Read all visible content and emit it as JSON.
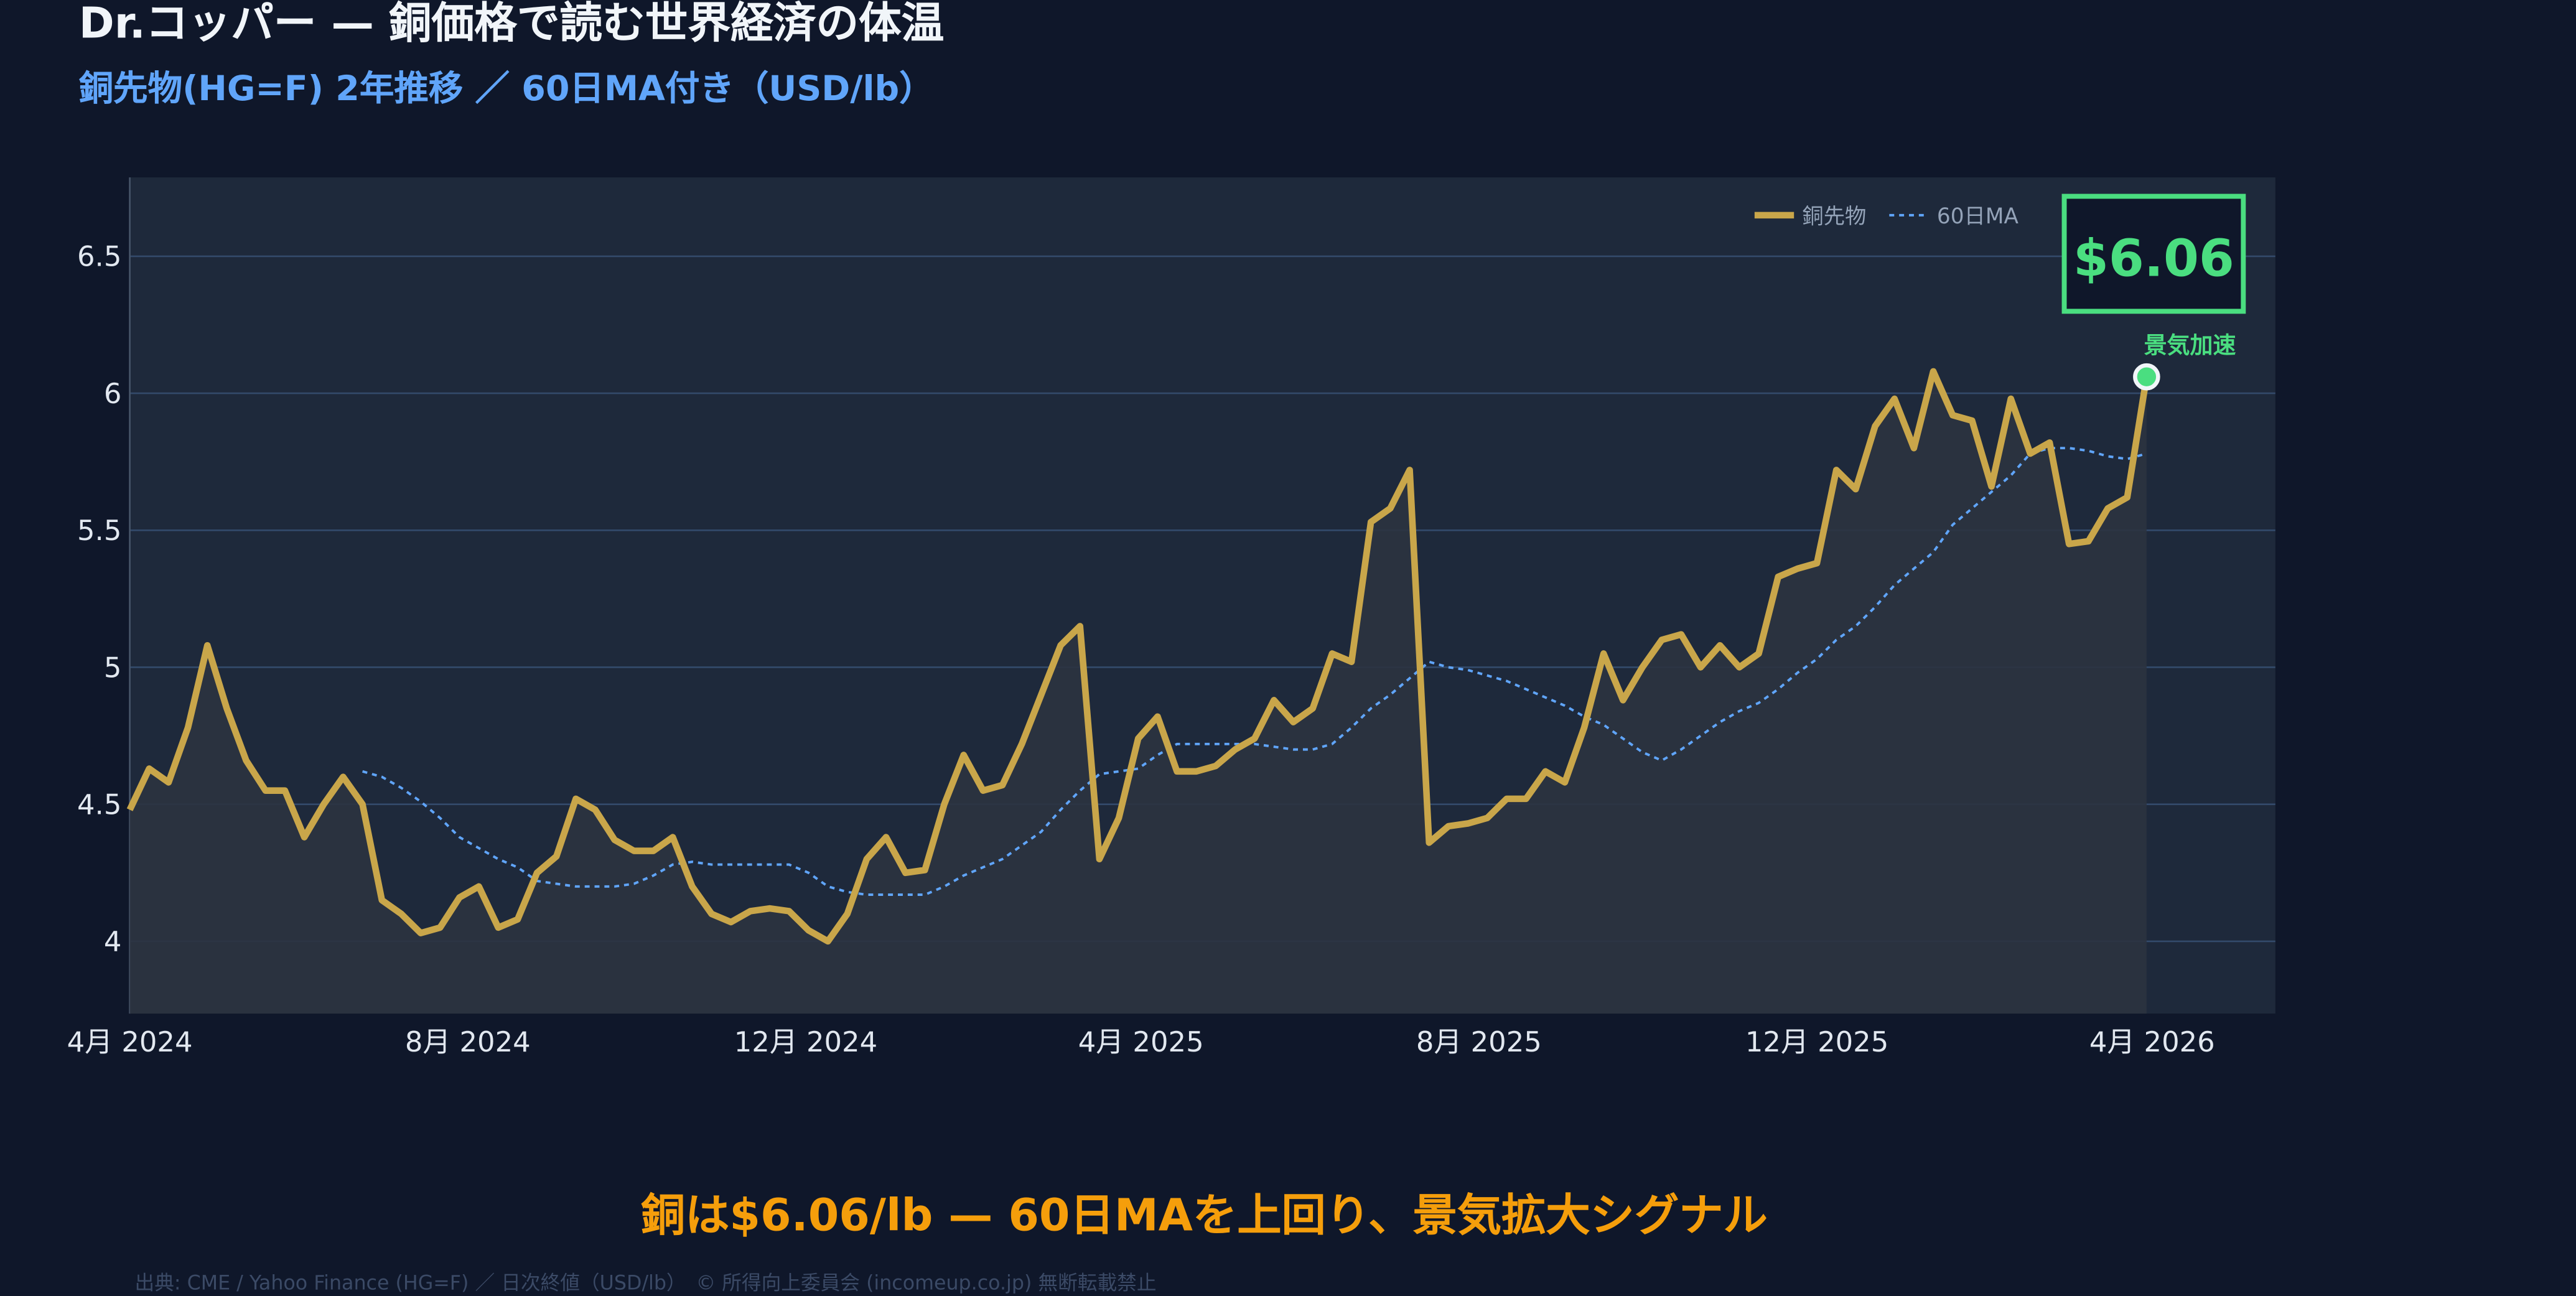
{
  "header": {
    "title": "Dr.コッパー — 銅価格で読む世界経済の体温",
    "subtitle": "銅先物(HG=F) 2年推移 ／ 60日MA付き（USD/lb）"
  },
  "conclusion": "銅は$6.06/lb — 60日MAを上回り、景気拡大シグナル",
  "footer": "出典: CME / Yahoo Finance (HG=F) ／ 日次終値（USD/lb）　© 所得向上委員会 (incomeup.co.jp) 無断転載禁止",
  "colors": {
    "copper": "#c9a64a",
    "ma": "#60a5fa",
    "accent": "#4ade80",
    "conclusion": "#f59e0b"
  },
  "chart_data": {
    "type": "line",
    "title": "",
    "xlabel": "",
    "ylabel": "",
    "ylim": [
      3.75,
      6.78
    ],
    "yticks": [
      "4",
      "4.5",
      "5",
      "5.5",
      "6",
      "6.5"
    ],
    "ytick_values": [
      4,
      4.5,
      5,
      5.5,
      6,
      6.5
    ],
    "xticks": [
      {
        "label": "4月 2024",
        "date": "2024-04-01"
      },
      {
        "label": "8月 2024",
        "date": "2024-08-01"
      },
      {
        "label": "12月 2024",
        "date": "2024-12-01"
      },
      {
        "label": "4月 2025",
        "date": "2025-04-01"
      },
      {
        "label": "8月 2025",
        "date": "2025-08-01"
      },
      {
        "label": "12月 2025",
        "date": "2025-12-01"
      },
      {
        "label": "4月 2026",
        "date": "2026-04-01"
      }
    ],
    "grid": true,
    "legend": {
      "position": "top-right",
      "entries": [
        "銅先物",
        "60日MA"
      ]
    },
    "x": [
      "2024-04-01",
      "2024-04-08",
      "2024-04-15",
      "2024-04-22",
      "2024-04-29",
      "2024-05-06",
      "2024-05-13",
      "2024-05-20",
      "2024-05-27",
      "2024-06-03",
      "2024-06-10",
      "2024-06-17",
      "2024-06-24",
      "2024-07-01",
      "2024-07-08",
      "2024-07-15",
      "2024-07-22",
      "2024-07-29",
      "2024-08-05",
      "2024-08-12",
      "2024-08-19",
      "2024-08-26",
      "2024-09-02",
      "2024-09-09",
      "2024-09-16",
      "2024-09-23",
      "2024-09-30",
      "2024-10-07",
      "2024-10-14",
      "2024-10-21",
      "2024-10-28",
      "2024-11-04",
      "2024-11-11",
      "2024-11-18",
      "2024-11-25",
      "2024-12-02",
      "2024-12-09",
      "2024-12-16",
      "2024-12-23",
      "2024-12-30",
      "2025-01-06",
      "2025-01-13",
      "2025-01-20",
      "2025-01-27",
      "2025-02-03",
      "2025-02-10",
      "2025-02-17",
      "2025-02-24",
      "2025-03-03",
      "2025-03-10",
      "2025-03-17",
      "2025-03-24",
      "2025-03-31",
      "2025-04-07",
      "2025-04-14",
      "2025-04-21",
      "2025-04-28",
      "2025-05-05",
      "2025-05-12",
      "2025-05-19",
      "2025-05-26",
      "2025-06-02",
      "2025-06-09",
      "2025-06-16",
      "2025-06-23",
      "2025-06-30",
      "2025-07-07",
      "2025-07-14",
      "2025-07-21",
      "2025-07-28",
      "2025-08-04",
      "2025-08-11",
      "2025-08-18",
      "2025-08-25",
      "2025-09-01",
      "2025-09-08",
      "2025-09-15",
      "2025-09-22",
      "2025-09-29",
      "2025-10-06",
      "2025-10-13",
      "2025-10-20",
      "2025-10-27",
      "2025-11-03",
      "2025-11-10",
      "2025-11-17",
      "2025-11-24",
      "2025-12-01",
      "2025-12-08",
      "2025-12-15",
      "2025-12-22",
      "2025-12-29",
      "2026-01-05",
      "2026-01-12",
      "2026-01-19",
      "2026-01-26",
      "2026-02-02",
      "2026-02-09",
      "2026-02-16",
      "2026-02-23",
      "2026-03-02",
      "2026-03-09",
      "2026-03-16",
      "2026-03-23",
      "2026-03-30"
    ],
    "series": [
      {
        "name": "銅先物",
        "values": [
          4.48,
          4.63,
          4.58,
          4.78,
          5.08,
          4.85,
          4.66,
          4.55,
          4.55,
          4.38,
          4.5,
          4.6,
          4.5,
          4.15,
          4.1,
          4.03,
          4.05,
          4.16,
          4.2,
          4.05,
          4.08,
          4.25,
          4.31,
          4.52,
          4.48,
          4.37,
          4.33,
          4.33,
          4.38,
          4.2,
          4.1,
          4.07,
          4.11,
          4.12,
          4.11,
          4.04,
          4.0,
          4.1,
          4.3,
          4.38,
          4.25,
          4.26,
          4.5,
          4.68,
          4.55,
          4.57,
          4.72,
          4.9,
          5.08,
          5.15,
          4.3,
          4.45,
          4.74,
          4.82,
          4.62,
          4.62,
          4.64,
          4.7,
          4.74,
          4.88,
          4.8,
          4.85,
          5.05,
          5.02,
          5.53,
          5.58,
          5.72,
          4.36,
          4.42,
          4.43,
          4.45,
          4.52,
          4.52,
          4.62,
          4.58,
          4.78,
          5.05,
          4.88,
          5.0,
          5.1,
          5.12,
          5.0,
          5.08,
          5.0,
          5.05,
          5.33,
          5.36,
          5.38,
          5.72,
          5.65,
          5.88,
          5.98,
          5.8,
          6.08,
          5.92,
          5.9,
          5.66,
          5.98,
          5.78,
          5.82,
          5.45,
          5.46,
          5.58,
          5.62,
          6.06
        ]
      },
      {
        "name": "60日MA",
        "values": [
          null,
          null,
          null,
          null,
          null,
          null,
          null,
          null,
          null,
          null,
          null,
          null,
          4.62,
          4.6,
          4.56,
          4.51,
          4.45,
          4.38,
          4.34,
          4.3,
          4.27,
          4.22,
          4.21,
          4.2,
          4.2,
          4.2,
          4.21,
          4.24,
          4.28,
          4.29,
          4.28,
          4.28,
          4.28,
          4.28,
          4.28,
          4.25,
          4.2,
          4.18,
          4.17,
          4.17,
          4.17,
          4.17,
          4.2,
          4.24,
          4.27,
          4.3,
          4.35,
          4.4,
          4.48,
          4.55,
          4.61,
          4.62,
          4.63,
          4.68,
          4.72,
          4.72,
          4.72,
          4.72,
          4.72,
          4.71,
          4.7,
          4.7,
          4.72,
          4.78,
          4.85,
          4.9,
          4.96,
          5.02,
          5.0,
          4.99,
          4.97,
          4.95,
          4.92,
          4.89,
          4.86,
          4.82,
          4.79,
          4.74,
          4.69,
          4.66,
          4.7,
          4.75,
          4.8,
          4.84,
          4.87,
          4.92,
          4.98,
          5.03,
          5.1,
          5.15,
          5.22,
          5.3,
          5.36,
          5.42,
          5.52,
          5.58,
          5.64,
          5.7,
          5.78,
          5.8,
          5.8,
          5.79,
          5.77,
          5.76,
          5.78
        ]
      }
    ],
    "annotations": {
      "latest_price": "$6.06",
      "marker_label": "景気加速"
    }
  }
}
